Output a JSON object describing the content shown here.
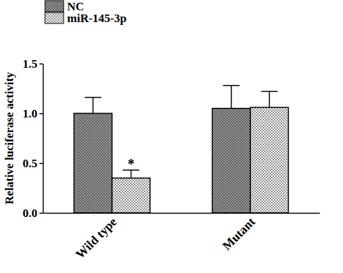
{
  "chart_data": {
    "type": "bar",
    "y_label": "Relative luciferase activity",
    "categories": [
      "Wild type",
      "Mutant"
    ],
    "series": [
      {
        "name": "NC",
        "color": "#6e6e6e",
        "values": [
          1.0,
          1.05
        ],
        "errors": [
          0.16,
          0.23
        ]
      },
      {
        "name": "miR-145-3p",
        "color": "#8c8c8c",
        "values": [
          0.35,
          1.06
        ],
        "errors": [
          0.08,
          0.16
        ]
      }
    ],
    "ylim": [
      0,
      1.5
    ],
    "yticks": [
      {
        "value": 0,
        "label": "0.0"
      },
      {
        "value": 0.5,
        "label": "0.5"
      },
      {
        "value": 1.0,
        "label": "1.0"
      },
      {
        "value": 1.5,
        "label": "1.5"
      }
    ],
    "legend": "top-left",
    "annotations": [
      {
        "text": "*",
        "category": "Wild type",
        "series": "miR-145-3p"
      }
    ]
  }
}
